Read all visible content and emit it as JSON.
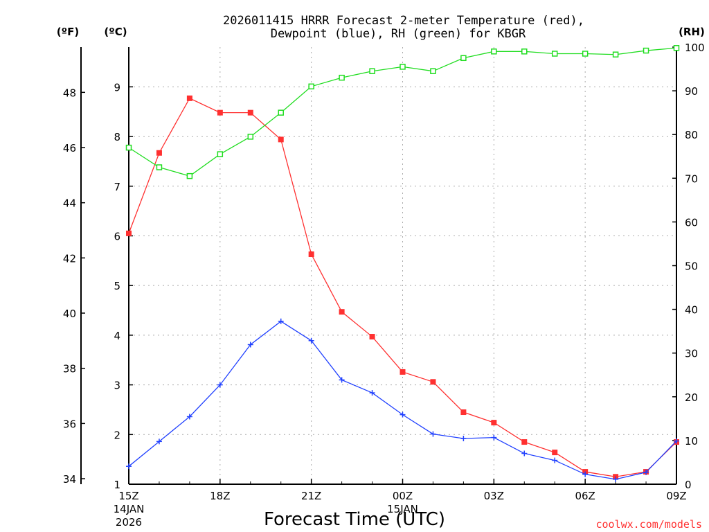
{
  "chart_data": {
    "type": "line",
    "title_line1": "2026011415 HRRR Forecast 2-meter Temperature (red),",
    "title_line2": "Dewpoint (blue), RH (green) for KBGR",
    "xlabel": "Forecast Time (UTC)",
    "unit_left_f": "(ºF)",
    "unit_left_c": "(ºC)",
    "unit_right_rh": "(RH)",
    "credit": "coolwx.com/models",
    "x_ticks": [
      {
        "label": "15Z",
        "sub1": "14JAN",
        "sub2": "2026",
        "hour": 0
      },
      {
        "label": "18Z",
        "sub1": "",
        "sub2": "",
        "hour": 3
      },
      {
        "label": "21Z",
        "sub1": "",
        "sub2": "",
        "hour": 6
      },
      {
        "label": "00Z",
        "sub1": "15JAN",
        "sub2": "",
        "hour": 9
      },
      {
        "label": "03Z",
        "sub1": "",
        "sub2": "",
        "hour": 12
      },
      {
        "label": "06Z",
        "sub1": "",
        "sub2": "",
        "hour": 15
      },
      {
        "label": "09Z",
        "sub1": "",
        "sub2": "",
        "hour": 18
      }
    ],
    "x_range": [
      0,
      18
    ],
    "celsius_axis": {
      "range": [
        1,
        9.8
      ],
      "ticks": [
        1,
        2,
        3,
        4,
        5,
        6,
        7,
        8,
        9
      ]
    },
    "fahrenheit_axis": {
      "range": [
        33.8,
        49.64
      ],
      "ticks": [
        34,
        36,
        38,
        40,
        42,
        44,
        46,
        48
      ]
    },
    "rh_axis": {
      "range": [
        0,
        100
      ],
      "ticks": [
        0,
        10,
        20,
        30,
        40,
        50,
        60,
        70,
        80,
        90,
        100
      ]
    },
    "colors": {
      "temperature": "#ff3030",
      "dewpoint": "#2040ff",
      "rh": "#20dd20"
    },
    "series": [
      {
        "name": "Temperature",
        "axis": "celsius",
        "marker": "filled-square",
        "color": "#ff3030",
        "x": [
          0,
          1,
          2,
          3,
          4,
          5,
          6,
          7,
          8,
          9,
          10,
          11,
          12,
          13,
          14,
          15,
          16,
          17,
          18
        ],
        "values": [
          6.05,
          7.67,
          8.77,
          8.48,
          8.48,
          7.94,
          5.63,
          4.47,
          3.97,
          3.26,
          3.06,
          2.45,
          2.24,
          1.85,
          1.64,
          1.25,
          1.15,
          1.25,
          1.85
        ]
      },
      {
        "name": "Dewpoint",
        "axis": "celsius",
        "marker": "plus",
        "color": "#2040ff",
        "x": [
          0,
          1,
          2,
          3,
          4,
          5,
          6,
          7,
          8,
          9,
          10,
          11,
          12,
          13,
          14,
          15,
          16,
          17,
          18
        ],
        "values": [
          1.36,
          1.86,
          2.36,
          3.0,
          3.81,
          4.28,
          3.89,
          3.1,
          2.84,
          2.4,
          2.01,
          1.92,
          1.94,
          1.62,
          1.48,
          1.2,
          1.1,
          1.24,
          1.87
        ]
      },
      {
        "name": "RH",
        "axis": "rh",
        "marker": "open-square",
        "color": "#20dd20",
        "x": [
          0,
          1,
          2,
          3,
          4,
          5,
          6,
          7,
          8,
          9,
          10,
          11,
          12,
          13,
          14,
          15,
          16,
          17,
          18
        ],
        "values": [
          77,
          72.5,
          70.5,
          75.5,
          79.5,
          85,
          91,
          93,
          94.5,
          95.5,
          94.5,
          97.5,
          99,
          99,
          98.5,
          98.5,
          98.3,
          99.2,
          99.8
        ]
      }
    ]
  }
}
